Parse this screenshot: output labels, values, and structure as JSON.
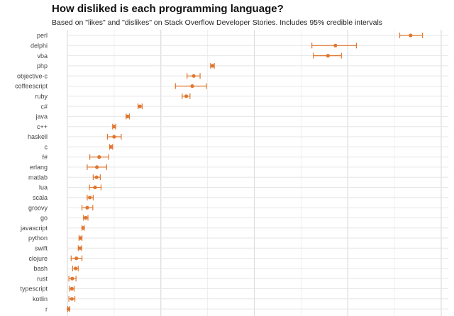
{
  "chart_data": {
    "type": "scatter",
    "title": "How disliked is each programming language?",
    "subtitle": "Based on \"likes\" and \"dislikes\" on Stack Overflow Developer Stories. Includes 95% credible intervals",
    "xlabel": "",
    "ylabel": "",
    "grid": true,
    "color": "#e0762e",
    "x_axis_labels_visible": false,
    "xlim": [
      0,
      1
    ],
    "languages": [
      "perl",
      "delphi",
      "vba",
      "php",
      "objective-c",
      "coffeescript",
      "ruby",
      "c#",
      "java",
      "c++",
      "haskell",
      "c",
      "f#",
      "erlang",
      "matlab",
      "lua",
      "scala",
      "groovy",
      "go",
      "javascript",
      "python",
      "swift",
      "clojure",
      "bash",
      "rust",
      "typescript",
      "kotlin",
      "r"
    ],
    "estimate": [
      0.918,
      0.717,
      0.697,
      0.388,
      0.338,
      0.334,
      0.318,
      0.194,
      0.161,
      0.125,
      0.125,
      0.117,
      0.085,
      0.079,
      0.078,
      0.074,
      0.06,
      0.053,
      0.049,
      0.042,
      0.035,
      0.034,
      0.024,
      0.022,
      0.013,
      0.012,
      0.012,
      0.003
    ],
    "lower": [
      0.889,
      0.654,
      0.658,
      0.383,
      0.32,
      0.289,
      0.307,
      0.189,
      0.157,
      0.121,
      0.107,
      0.113,
      0.06,
      0.053,
      0.069,
      0.059,
      0.053,
      0.039,
      0.043,
      0.039,
      0.031,
      0.029,
      0.01,
      0.014,
      0.004,
      0.006,
      0.004,
      0.001
    ],
    "upper": [
      0.95,
      0.773,
      0.733,
      0.393,
      0.355,
      0.372,
      0.328,
      0.2,
      0.166,
      0.129,
      0.144,
      0.121,
      0.11,
      0.105,
      0.088,
      0.09,
      0.069,
      0.068,
      0.055,
      0.045,
      0.039,
      0.038,
      0.039,
      0.029,
      0.023,
      0.018,
      0.02,
      0.006
    ]
  }
}
